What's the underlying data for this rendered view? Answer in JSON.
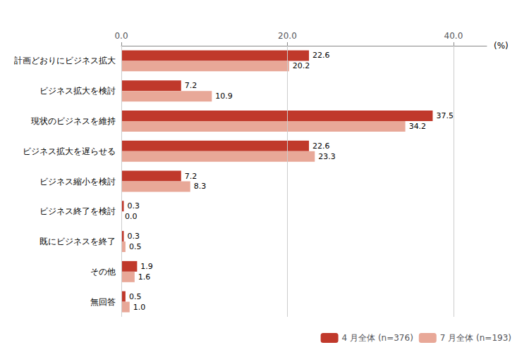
{
  "chart_data": {
    "type": "bar",
    "orientation": "horizontal",
    "xlabel": "(%)",
    "categories": [
      "計画どおりにビジネス拡大",
      "ビジネス拡大を検討",
      "現状のビジネスを維持",
      "ビジネス拡大を遅らせる",
      "ビジネス縮小を検討",
      "ビジネス終了を検討",
      "既にビジネスを終了",
      "その他",
      "無回答"
    ],
    "series": [
      {
        "name": "4 月全体 (n=376)",
        "color": "#c0392b",
        "values": [
          22.6,
          7.2,
          37.5,
          22.6,
          7.2,
          0.3,
          0.3,
          1.9,
          0.5
        ],
        "value_labels": [
          "22.6",
          "7.2",
          "37.5",
          "22.6",
          "7.2",
          "0.3",
          "0.3",
          "1.9",
          "0.5"
        ]
      },
      {
        "name": "7 月全体 (n=193)",
        "color": "#e8a898",
        "values": [
          20.2,
          10.9,
          34.2,
          23.3,
          8.3,
          0.0,
          0.5,
          1.6,
          1.0
        ],
        "value_labels": [
          "20.2",
          "10.9",
          "34.2",
          "23.3",
          "8.3",
          "0.0",
          "0.5",
          "1.6",
          "1.0"
        ]
      }
    ],
    "xlim": [
      0,
      44
    ],
    "xticks": [
      {
        "value": 0,
        "label": "0.0"
      },
      {
        "value": 20,
        "label": "20.0"
      },
      {
        "value": 40,
        "label": "40.0"
      }
    ],
    "grid": true,
    "legend": "lower right",
    "data_labels": true
  }
}
